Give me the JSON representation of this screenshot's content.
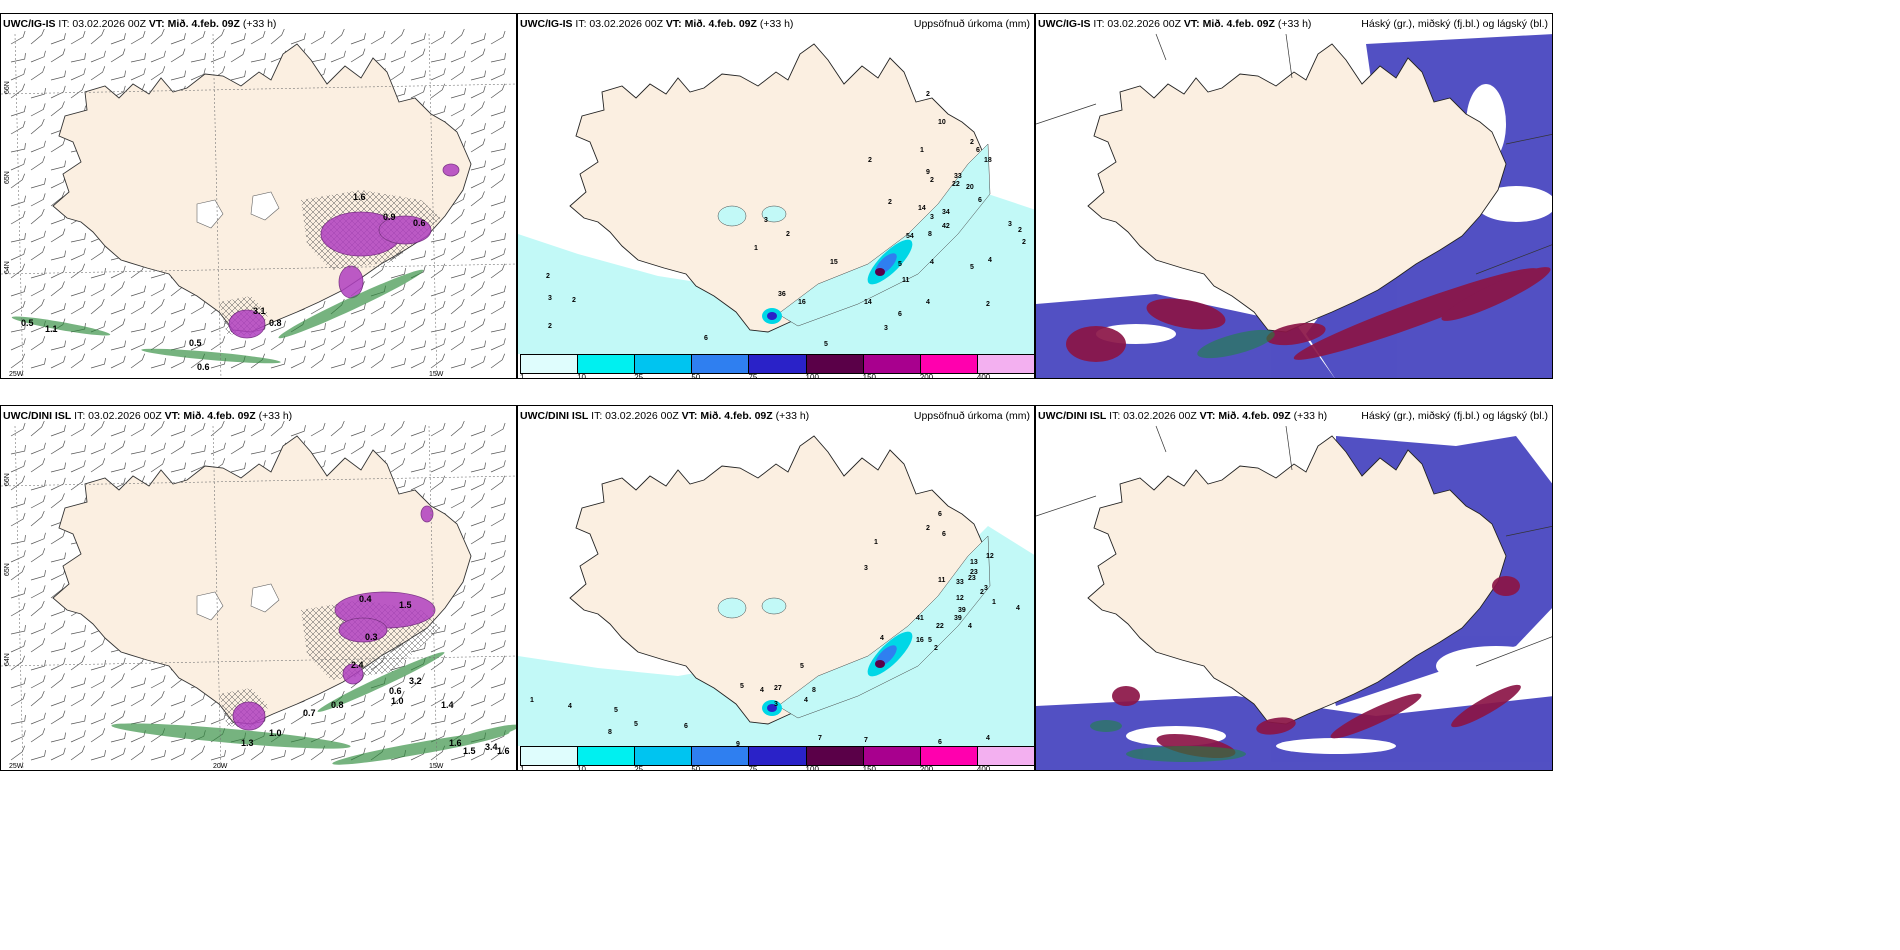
{
  "rows": [
    {
      "model": "UWC/IG-IS",
      "it_label": "IT: 03.02.2026 00Z",
      "vt_label": "VT: Mið. 4.feb. 09Z",
      "lead": "(+33 h)",
      "panels": {
        "wind": {
          "lat_labels": [
            "66N",
            "65N",
            "64N"
          ],
          "lon_labels": [
            "25W",
            "15W"
          ],
          "value_labels": [
            "0.5",
            "1.1",
            "0.5",
            "0.6",
            "0.8",
            "3.1",
            "1.6",
            "0.9",
            "0.6"
          ]
        },
        "precip": {
          "title": "Uppsöfnuð úrkoma (mm)",
          "value_labels": [
            "2",
            "10",
            "1",
            "2",
            "9",
            "6",
            "18",
            "2",
            "2",
            "33",
            "22",
            "20",
            "3",
            "2",
            "14",
            "34",
            "6",
            "42",
            "3",
            "2",
            "2",
            "54",
            "8",
            "4",
            "15",
            "5",
            "11",
            "4",
            "5",
            "1",
            "3",
            "2",
            "36",
            "16",
            "14",
            "4",
            "6",
            "2",
            "3",
            "2",
            "2",
            "6",
            "3",
            "2",
            "5"
          ]
        },
        "clouds": {
          "title": "Háský (gr.), miðský (fj.bl.) og lágský (bl.)"
        }
      }
    },
    {
      "model": "UWC/DINI ISL",
      "it_label": "IT: 03.02.2026 00Z",
      "vt_label": "VT: Mið. 4.feb. 09Z",
      "lead": "(+33 h)",
      "panels": {
        "wind": {
          "lat_labels": [
            "66N",
            "65N",
            "64N"
          ],
          "lon_labels": [
            "25W",
            "20W",
            "15W"
          ],
          "value_labels": [
            "0.7",
            "0.8",
            "1.0",
            "1.3",
            "1.4",
            "0.6",
            "1.0",
            "3.2",
            "1.6",
            "3.4",
            "1.5",
            "1.6",
            "2.4",
            "0.4",
            "0.3",
            "1.5"
          ]
        },
        "precip": {
          "title": "Uppsöfnuð úrkoma (mm)",
          "value_labels": [
            "6",
            "2",
            "6",
            "1",
            "13",
            "3",
            "12",
            "23",
            "11",
            "33",
            "23",
            "3",
            "12",
            "39",
            "2",
            "1",
            "41",
            "39",
            "22",
            "4",
            "5",
            "2",
            "16",
            "4",
            "4",
            "27",
            "5",
            "8",
            "4",
            "1",
            "4",
            "5",
            "5",
            "8",
            "6",
            "5",
            "4",
            "3",
            "7",
            "7",
            "6",
            "9",
            "4"
          ]
        },
        "clouds": {
          "title": "Háský (gr.), miðský (fj.bl.) og lágský (bl.)"
        }
      }
    }
  ],
  "colorbar": {
    "colors": [
      "#dffdfd",
      "#00f0f0",
      "#00c4f0",
      "#2f7ff0",
      "#2a22c8",
      "#5a0048",
      "#a8008e",
      "#ff00ae",
      "#f3b0f0"
    ],
    "labels": [
      "1",
      "10",
      "25",
      "50",
      "75",
      "100",
      "150",
      "200",
      "400"
    ]
  },
  "legend_colors": {
    "land": "#fbefe1",
    "precip_light": "#c2f9f7",
    "precip_mid": "#00d7e6",
    "snow": "#b03fc0",
    "rain": "#2e8b3c",
    "high_cloud": "#1a8a3a",
    "mid_cloud": "#8b1547",
    "low_cloud": "#3f3dbd"
  }
}
